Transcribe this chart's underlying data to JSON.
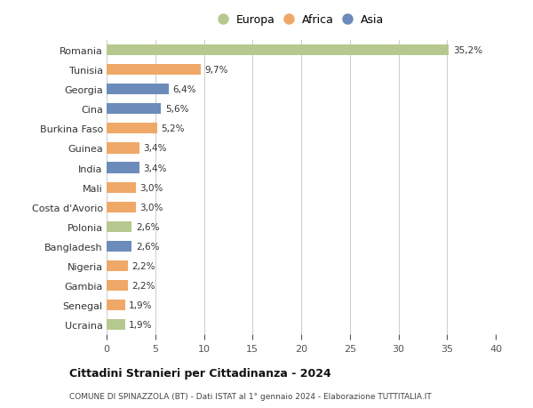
{
  "categories": [
    "Romania",
    "Tunisia",
    "Georgia",
    "Cina",
    "Burkina Faso",
    "Guinea",
    "India",
    "Mali",
    "Costa d'Avorio",
    "Polonia",
    "Bangladesh",
    "Nigeria",
    "Gambia",
    "Senegal",
    "Ucraina"
  ],
  "values": [
    35.2,
    9.7,
    6.4,
    5.6,
    5.2,
    3.4,
    3.4,
    3.0,
    3.0,
    2.6,
    2.6,
    2.2,
    2.2,
    1.9,
    1.9
  ],
  "labels": [
    "35,2%",
    "9,7%",
    "6,4%",
    "5,6%",
    "5,2%",
    "3,4%",
    "3,4%",
    "3,0%",
    "3,0%",
    "2,6%",
    "2,6%",
    "2,2%",
    "2,2%",
    "1,9%",
    "1,9%"
  ],
  "continents": [
    "Europa",
    "Africa",
    "Asia",
    "Asia",
    "Africa",
    "Africa",
    "Asia",
    "Africa",
    "Africa",
    "Europa",
    "Asia",
    "Africa",
    "Africa",
    "Africa",
    "Europa"
  ],
  "colors": {
    "Europa": "#b5c98e",
    "Africa": "#f0a868",
    "Asia": "#6b8cba"
  },
  "xlim": [
    0,
    40
  ],
  "xticks": [
    0,
    5,
    10,
    15,
    20,
    25,
    30,
    35,
    40
  ],
  "title": "Cittadini Stranieri per Cittadinanza - 2024",
  "subtitle": "COMUNE DI SPINAZZOLA (BT) - Dati ISTAT al 1° gennaio 2024 - Elaborazione TUTTITALIA.IT",
  "background_color": "#ffffff",
  "grid_color": "#cccccc",
  "bar_height": 0.55
}
